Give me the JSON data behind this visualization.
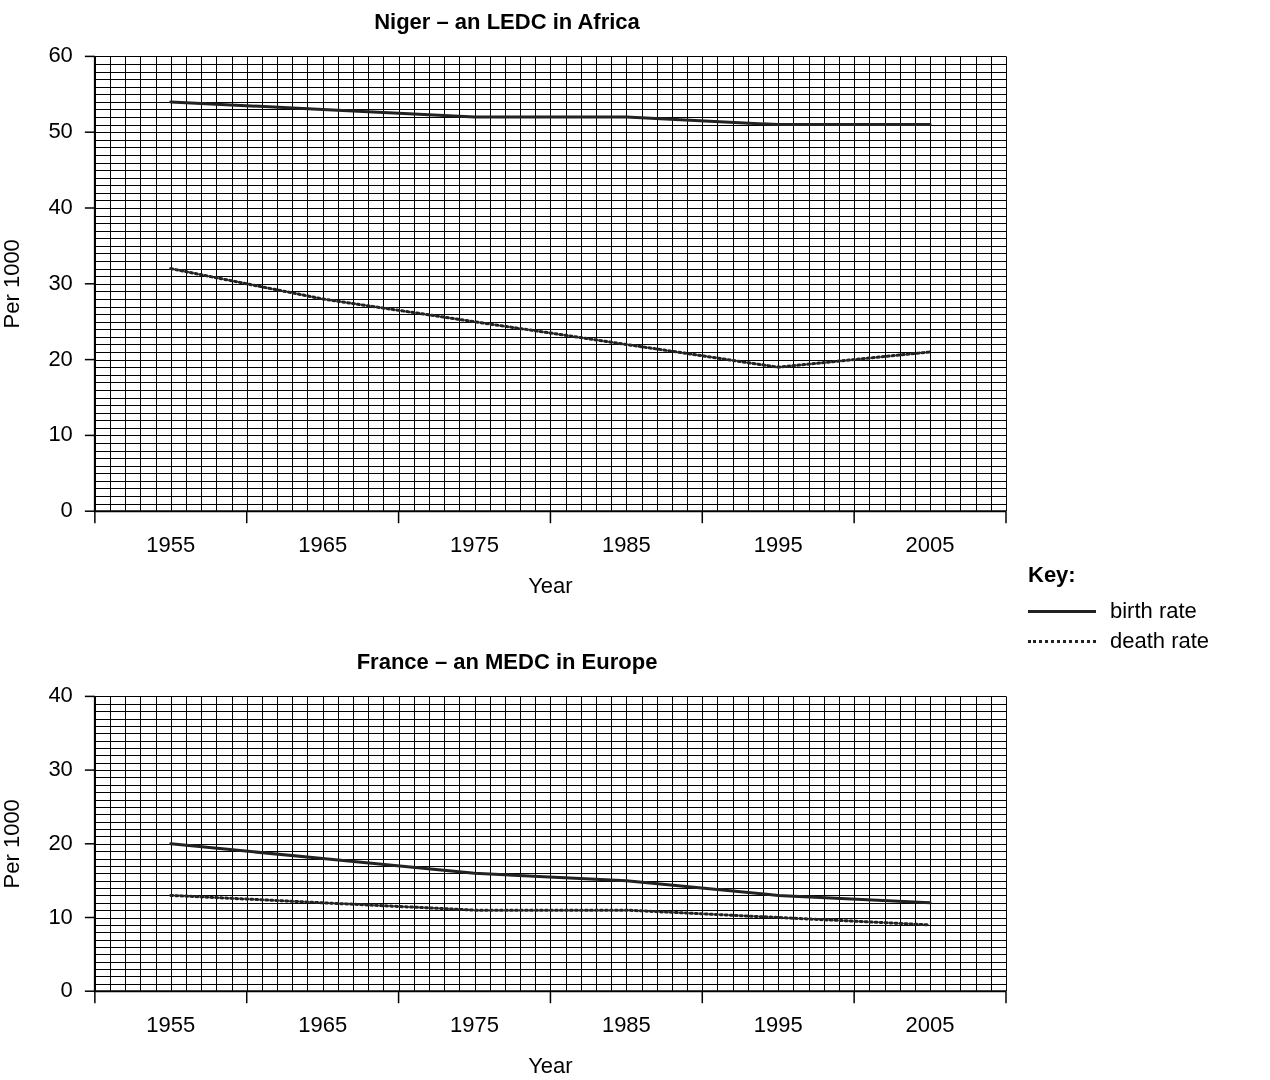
{
  "chart_data": [
    {
      "type": "line",
      "title": "Niger – an LEDC in Africa",
      "xlabel": "Year",
      "ylabel": "Per 1000",
      "x": [
        1955,
        1965,
        1975,
        1985,
        1995,
        2005
      ],
      "xlim": [
        1950,
        2010
      ],
      "xticks": [
        {
          "value": 1950,
          "label": null
        },
        1955,
        {
          "value": 1960,
          "label": null
        },
        1965,
        {
          "value": 1970,
          "label": null
        },
        1975,
        {
          "value": 1980,
          "label": null
        },
        1985,
        {
          "value": 1990,
          "label": null
        },
        1995,
        {
          "value": 2000,
          "label": null
        },
        2005,
        {
          "value": 2010,
          "label": null
        }
      ],
      "ylim": [
        0,
        60
      ],
      "yticks": [
        0,
        10,
        20,
        30,
        40,
        50,
        60
      ],
      "grid": true,
      "legend": "bottom right",
      "legend_title": "Key:",
      "marker": "none",
      "series": [
        {
          "name": "birth rate",
          "color": "#222222",
          "line_style": "solid",
          "values": [
            54,
            53,
            52,
            52,
            51,
            51
          ]
        },
        {
          "name": "death rate",
          "color": "#222222",
          "line_style": "dotted",
          "values": [
            32,
            28,
            25,
            22,
            19,
            21
          ]
        }
      ]
    },
    {
      "type": "line",
      "title": "France – an MEDC in Europe",
      "xlabel": "Year",
      "ylabel": "Per 1000",
      "x": [
        1955,
        1965,
        1975,
        1985,
        1995,
        2005
      ],
      "xlim": [
        1950,
        2010
      ],
      "xticks": [
        {
          "value": 1950,
          "label": null
        },
        1955,
        {
          "value": 1960,
          "label": null
        },
        1965,
        {
          "value": 1970,
          "label": null
        },
        1975,
        {
          "value": 1980,
          "label": null
        },
        1985,
        {
          "value": 1990,
          "label": null
        },
        1995,
        {
          "value": 2000,
          "label": null
        },
        2005,
        {
          "value": 2010,
          "label": null
        }
      ],
      "ylim": [
        0,
        40
      ],
      "yticks": [
        0,
        10,
        20,
        30,
        40
      ],
      "grid": true,
      "marker": "none",
      "series": [
        {
          "color": "#222222",
          "line_style": "solid",
          "values": [
            20,
            18,
            16,
            15,
            13,
            12
          ]
        },
        {
          "color": "#222222",
          "line_style": "dotted",
          "values": [
            13,
            12,
            11,
            11,
            10,
            9
          ]
        }
      ]
    }
  ]
}
